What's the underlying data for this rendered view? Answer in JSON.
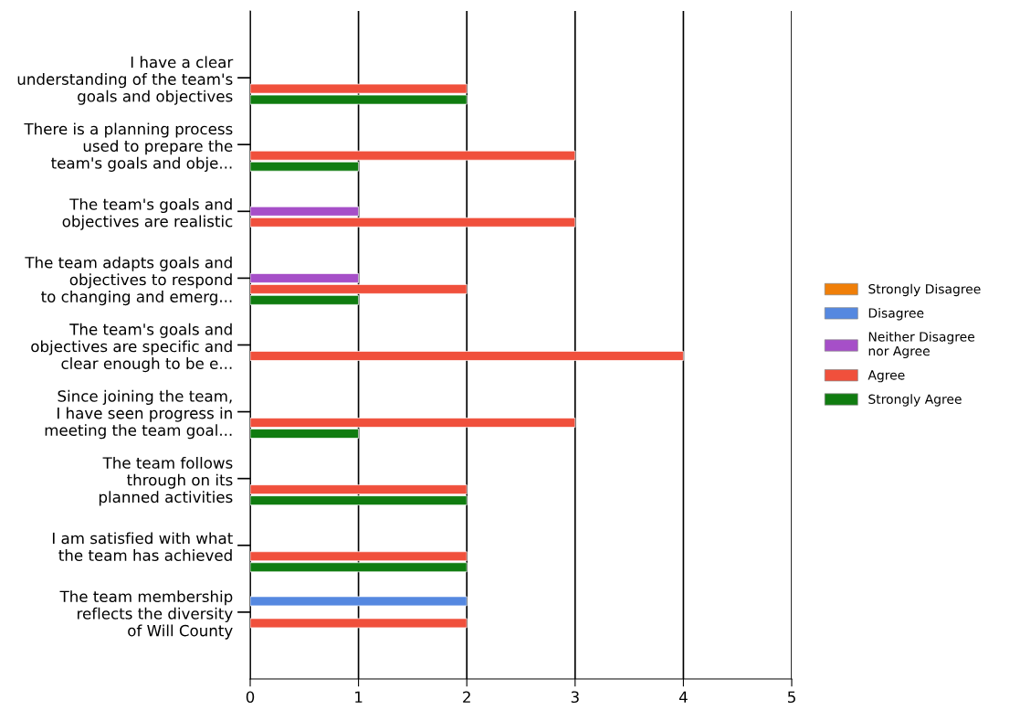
{
  "chart_data": {
    "type": "bar",
    "orientation": "horizontal",
    "categories": [
      "I have a clear\nunderstanding of the team's\ngoals and objectives",
      "There is a planning process\nused to prepare the\nteam's goals and obje...",
      "The team's goals and\nobjectives are realistic",
      "The team adapts goals and\nobjectives to respond\nto changing and emerg...",
      "The team's goals and\nobjectives are specific and\nclear enough to be e...",
      "Since joining the team,\nI have seen progress in\nmeeting the team goal...",
      "The team follows\nthrough on its\nplanned activities",
      "I am satisfied with what\nthe team has achieved",
      "The team membership\nreflects the diversity\nof Will County"
    ],
    "series": [
      {
        "name": "Strongly Disagree",
        "color": "#f07f09",
        "values": [
          null,
          null,
          null,
          null,
          null,
          null,
          null,
          null,
          null
        ]
      },
      {
        "name": "Disagree",
        "color": "#5588e0",
        "values": [
          null,
          null,
          null,
          null,
          null,
          null,
          null,
          null,
          2
        ]
      },
      {
        "name": "Neither Disagree\nnor Agree",
        "color": "#a64fc8",
        "values": [
          null,
          null,
          1,
          1,
          null,
          null,
          null,
          null,
          null
        ]
      },
      {
        "name": "Agree",
        "color": "#f0503c",
        "values": [
          2,
          3,
          3,
          2,
          4,
          3,
          2,
          2,
          2
        ]
      },
      {
        "name": "Strongly Agree",
        "color": "#107c10",
        "values": [
          2,
          1,
          null,
          1,
          null,
          1,
          2,
          2,
          null
        ]
      }
    ],
    "xlim": [
      0,
      5
    ],
    "xticks": [
      0,
      1,
      2,
      3,
      4,
      5
    ],
    "grid": "x",
    "legend": "right"
  }
}
